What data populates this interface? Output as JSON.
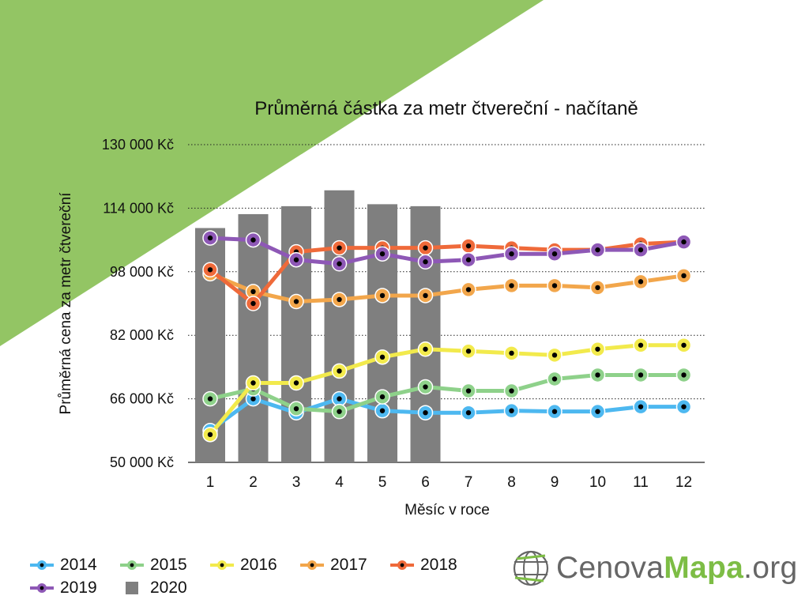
{
  "colors": {
    "background_triangle": "#93c564",
    "gridline": "#222222",
    "bar": "#7f7f7f",
    "logo_grey": "#666666",
    "logo_green": "#7dbd45"
  },
  "logo": {
    "part1": "Cenova",
    "part2": "Mapa",
    "part3": ".org",
    "icon": "globe-icon"
  },
  "chart_data": {
    "type": "line",
    "title": "Průměrná částka za metr čtvereční - načítaně",
    "xlabel": "Měsíc v roce",
    "ylabel": "Průměrná cena za metr čtvereční",
    "categories": [
      "1",
      "2",
      "3",
      "4",
      "5",
      "6",
      "7",
      "8",
      "9",
      "10",
      "11",
      "12"
    ],
    "ylim": [
      50000,
      130000
    ],
    "yticks": [
      50000,
      66000,
      82000,
      98000,
      114000,
      130000
    ],
    "ytick_labels": [
      "50 000 Kč",
      "66 000 Kč",
      "82 000 Kč",
      "98 000 Kč",
      "114 000 Kč",
      "130 000 Kč"
    ],
    "grid": "dotted horizontal",
    "legend": "bottom",
    "bars": {
      "name": "2020",
      "color": "#7f7f7f",
      "values": [
        109000,
        112500,
        114500,
        118500,
        115000,
        114500
      ]
    },
    "series": [
      {
        "name": "2014",
        "color": "#4db8f0",
        "values": [
          58000,
          66000,
          62500,
          66000,
          63000,
          62500,
          62500,
          63000,
          62800,
          62800,
          64000,
          64000
        ]
      },
      {
        "name": "2015",
        "color": "#8ed18a",
        "values": [
          66000,
          68500,
          63500,
          62800,
          66500,
          69000,
          68000,
          68000,
          71000,
          72000,
          72000,
          72000
        ]
      },
      {
        "name": "2016",
        "color": "#f2ea4c",
        "values": [
          57000,
          70000,
          70000,
          73000,
          76500,
          78500,
          78000,
          77500,
          77000,
          78500,
          79500,
          79500
        ]
      },
      {
        "name": "2017",
        "color": "#f2a64b",
        "values": [
          97500,
          93000,
          90500,
          91000,
          92000,
          92000,
          93500,
          94500,
          94500,
          94000,
          95500,
          97000
        ]
      },
      {
        "name": "2018",
        "color": "#ef6a3a",
        "values": [
          98500,
          90000,
          103000,
          104000,
          104000,
          104000,
          104500,
          104000,
          103500,
          103500,
          105000,
          105500
        ]
      },
      {
        "name": "2019",
        "color": "#8e58b6",
        "values": [
          106500,
          106000,
          101000,
          100000,
          102500,
          100500,
          101000,
          102500,
          102500,
          103500,
          103500,
          105500
        ]
      }
    ]
  }
}
